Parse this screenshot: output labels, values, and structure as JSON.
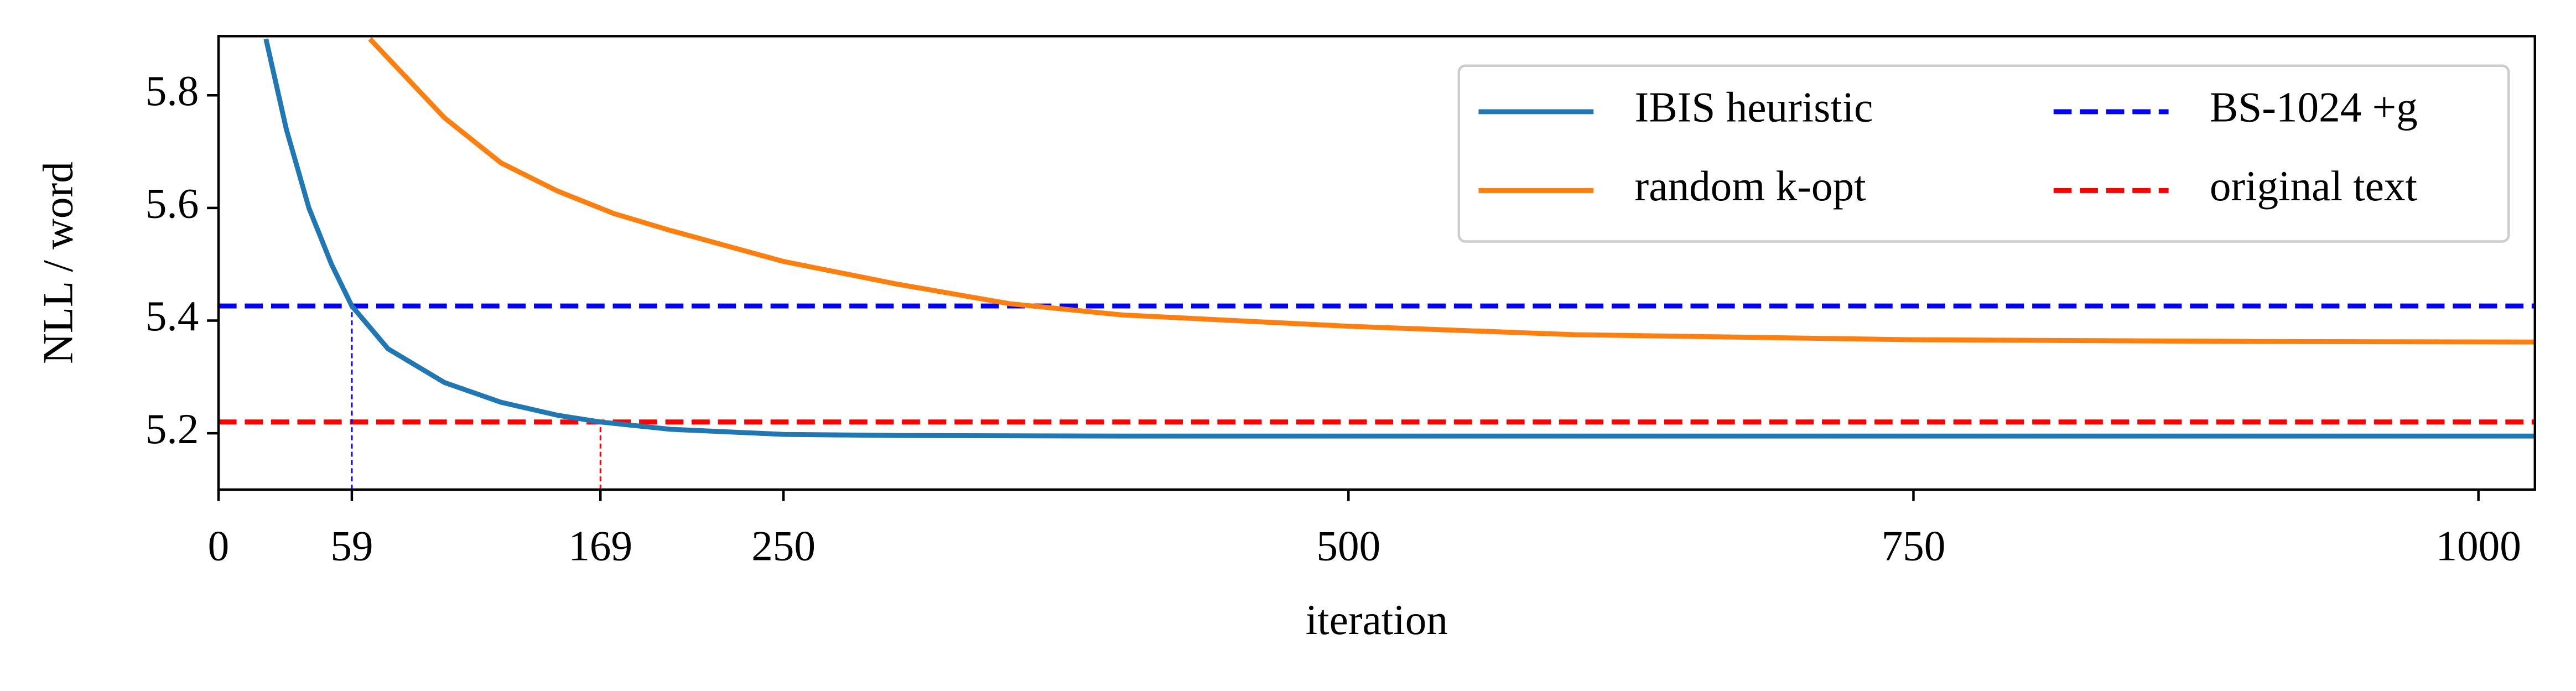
{
  "chart_data": {
    "type": "line",
    "xlabel": "iteration",
    "ylabel": "NLL / word",
    "xlim": [
      0,
      1025
    ],
    "ylim": [
      5.1,
      5.905
    ],
    "xticks": [
      0,
      59,
      169,
      250,
      500,
      750,
      1000
    ],
    "yticks": [
      5.2,
      5.4,
      5.6,
      5.8
    ],
    "series": [
      {
        "name": "IBIS heuristic",
        "color": "#1f77b4",
        "x": [
          21,
          30,
          40,
          50,
          59,
          75,
          100,
          125,
          150,
          169,
          200,
          250,
          300,
          400,
          500,
          750,
          1025
        ],
        "values": [
          5.9,
          5.74,
          5.6,
          5.5,
          5.426,
          5.35,
          5.29,
          5.255,
          5.232,
          5.22,
          5.207,
          5.198,
          5.196,
          5.195,
          5.195,
          5.195,
          5.195
        ]
      },
      {
        "name": "random k-opt",
        "color": "#ff7f0e",
        "x": [
          67,
          100,
          125,
          150,
          175,
          200,
          250,
          300,
          350,
          400,
          500,
          600,
          750,
          900,
          1025
        ],
        "values": [
          5.9,
          5.76,
          5.68,
          5.63,
          5.59,
          5.56,
          5.505,
          5.465,
          5.43,
          5.41,
          5.39,
          5.375,
          5.366,
          5.363,
          5.362
        ]
      }
    ],
    "reference_lines": [
      {
        "name": "BS-1024 +g",
        "color": "#0000ff",
        "value": 5.426,
        "style": "dashed"
      },
      {
        "name": "original text",
        "color": "#ff0000",
        "value": 5.22,
        "style": "dashed"
      }
    ],
    "guides": [
      {
        "xtick": 1,
        "reference": 0
      },
      {
        "xtick": 2,
        "reference": 1
      }
    ]
  }
}
